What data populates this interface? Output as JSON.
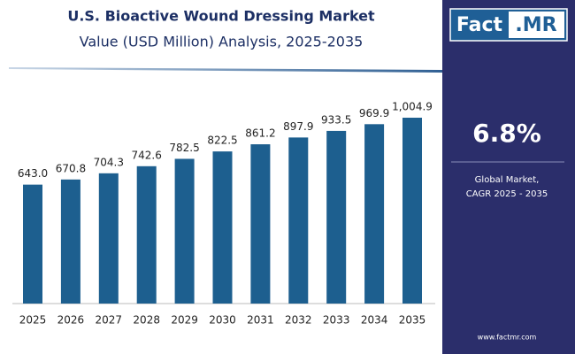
{
  "chart_data": {
    "type": "bar",
    "title": "U.S. Bioactive Wound Dressing Market",
    "subtitle": "Value (USD Million) Analysis, 2025-2035",
    "categories": [
      "2025",
      "2026",
      "2027",
      "2028",
      "2029",
      "2030",
      "2031",
      "2032",
      "2033",
      "2034",
      "2035"
    ],
    "values": [
      643.0,
      670.8,
      704.3,
      742.6,
      782.5,
      822.5,
      861.2,
      897.9,
      933.5,
      969.9,
      1004.9
    ],
    "value_labels": [
      "643.0",
      "670.8",
      "704.3",
      "742.6",
      "782.5",
      "822.5",
      "861.2",
      "897.9",
      "933.5",
      "969.9",
      "1,004.9"
    ],
    "color": "#1d5f8f"
  },
  "panel": {
    "logo": {
      "left": "Fact",
      "right": ".MR"
    },
    "cagr": "6.8%",
    "cagr_caption": [
      "Global Market,",
      "CAGR 2025 - 2035"
    ],
    "website": "www.factmr.com"
  }
}
